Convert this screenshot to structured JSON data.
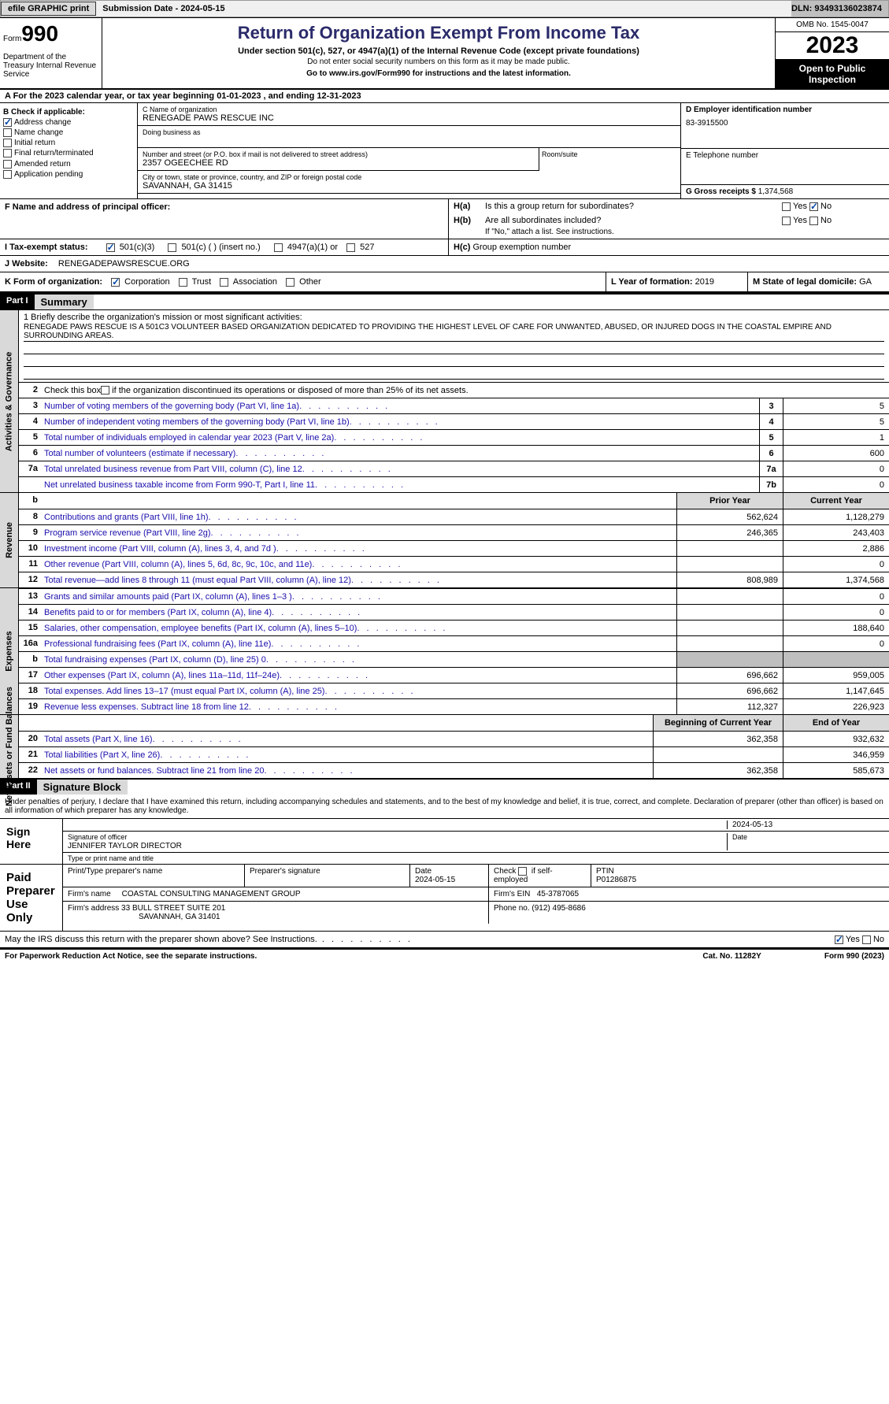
{
  "topbar": {
    "efile": "efile GRAPHIC print",
    "submission": "Submission Date - 2024-05-15",
    "dln": "DLN: 93493136023874"
  },
  "header": {
    "form_label": "Form",
    "form_number": "990",
    "dept": "Department of the Treasury Internal Revenue Service",
    "title": "Return of Organization Exempt From Income Tax",
    "subtitle": "Under section 501(c), 527, or 4947(a)(1) of the Internal Revenue Code (except private foundations)",
    "note": "Do not enter social security numbers on this form as it may be made public.",
    "goto": "Go to www.irs.gov/Form990 for instructions and the latest information.",
    "omb": "OMB No. 1545-0047",
    "year": "2023",
    "open": "Open to Public Inspection"
  },
  "lineA": "A For the 2023 calendar year, or tax year beginning 01-01-2023   , and ending 12-31-2023",
  "colB": {
    "label": "B Check if applicable:",
    "items": [
      "Address change",
      "Name change",
      "Initial return",
      "Final return/terminated",
      "Amended return",
      "Application pending"
    ],
    "checked": [
      true,
      false,
      false,
      false,
      false,
      false
    ]
  },
  "colC": {
    "name_label": "C Name of organization",
    "name": "RENEGADE PAWS RESCUE INC",
    "dba_label": "Doing business as",
    "dba": "",
    "addr_label": "Number and street (or P.O. box if mail is not delivered to street address)",
    "addr": "2357 OGEECHEE RD",
    "room_label": "Room/suite",
    "city_label": "City or town, state or province, country, and ZIP or foreign postal code",
    "city": "SAVANNAH, GA  31415"
  },
  "colD": {
    "ein_label": "D Employer identification number",
    "ein": "83-3915500",
    "tel_label": "E Telephone number",
    "tel": "",
    "gross_label": "G Gross receipts $",
    "gross": "1,374,568"
  },
  "rowF": {
    "label": "F  Name and address of principal officer:",
    "val": ""
  },
  "rowH": {
    "a": "H(a)  Is this a group return for subordinates?",
    "b": "H(b)  Are all subordinates included?",
    "b_note": "If \"No,\" attach a list. See instructions.",
    "c": "H(c)  Group exemption number",
    "yes": "Yes",
    "no": "No"
  },
  "rowI": {
    "label": "I  Tax-exempt status:",
    "opts": [
      "501(c)(3)",
      "501(c) (  ) (insert no.)",
      "4947(a)(1) or",
      "527"
    ]
  },
  "rowJ": {
    "label": "J  Website:",
    "val": "RENEGADEPAWSRESCUE.ORG"
  },
  "rowK": {
    "label": "K Form of organization:",
    "opts": [
      "Corporation",
      "Trust",
      "Association",
      "Other"
    ]
  },
  "rowL": {
    "label": "L Year of formation:",
    "val": "2019"
  },
  "rowM": {
    "label": "M State of legal domicile:",
    "val": "GA"
  },
  "part1": {
    "num": "Part I",
    "title": "Summary"
  },
  "summary": {
    "s1_label": "1  Briefly describe the organization's mission or most significant activities:",
    "s1_text": "RENEGADE PAWS RESCUE IS A 501C3 VOLUNTEER BASED ORGANIZATION DEDICATED TO PROVIDING THE HIGHEST LEVEL OF CARE FOR UNWANTED, ABUSED, OR INJURED DOGS IN THE COASTAL EMPIRE AND SURROUNDING AREAS.",
    "s2": "Check this box      if the organization discontinued its operations or disposed of more than 25% of its net assets.",
    "lines": [
      {
        "n": "3",
        "t": "Number of voting members of the governing body (Part VI, line 1a)",
        "box": "3",
        "v": "5"
      },
      {
        "n": "4",
        "t": "Number of independent voting members of the governing body (Part VI, line 1b)",
        "box": "4",
        "v": "5"
      },
      {
        "n": "5",
        "t": "Total number of individuals employed in calendar year 2023 (Part V, line 2a)",
        "box": "5",
        "v": "1"
      },
      {
        "n": "6",
        "t": "Total number of volunteers (estimate if necessary)",
        "box": "6",
        "v": "600"
      },
      {
        "n": "7a",
        "t": "Total unrelated business revenue from Part VIII, column (C), line 12",
        "box": "7a",
        "v": "0"
      },
      {
        "n": "",
        "t": "Net unrelated business taxable income from Form 990-T, Part I, line 11",
        "box": "7b",
        "v": "0"
      }
    ]
  },
  "revenue": {
    "vlabel": "Revenue",
    "header": {
      "py": "Prior Year",
      "cy": "Current Year"
    },
    "lines": [
      {
        "n": "8",
        "t": "Contributions and grants (Part VIII, line 1h)",
        "py": "562,624",
        "cy": "1,128,279"
      },
      {
        "n": "9",
        "t": "Program service revenue (Part VIII, line 2g)",
        "py": "246,365",
        "cy": "243,403"
      },
      {
        "n": "10",
        "t": "Investment income (Part VIII, column (A), lines 3, 4, and 7d )",
        "py": "",
        "cy": "2,886"
      },
      {
        "n": "11",
        "t": "Other revenue (Part VIII, column (A), lines 5, 6d, 8c, 9c, 10c, and 11e)",
        "py": "",
        "cy": "0"
      },
      {
        "n": "12",
        "t": "Total revenue—add lines 8 through 11 (must equal Part VIII, column (A), line 12)",
        "py": "808,989",
        "cy": "1,374,568"
      }
    ]
  },
  "expenses": {
    "vlabel": "Expenses",
    "lines": [
      {
        "n": "13",
        "t": "Grants and similar amounts paid (Part IX, column (A), lines 1–3 )",
        "py": "",
        "cy": "0"
      },
      {
        "n": "14",
        "t": "Benefits paid to or for members (Part IX, column (A), line 4)",
        "py": "",
        "cy": "0"
      },
      {
        "n": "15",
        "t": "Salaries, other compensation, employee benefits (Part IX, column (A), lines 5–10)",
        "py": "",
        "cy": "188,640"
      },
      {
        "n": "16a",
        "t": "Professional fundraising fees (Part IX, column (A), line 11e)",
        "py": "",
        "cy": "0"
      },
      {
        "n": "b",
        "t": "Total fundraising expenses (Part IX, column (D), line 25) 0",
        "py": "grey",
        "cy": "grey"
      },
      {
        "n": "17",
        "t": "Other expenses (Part IX, column (A), lines 11a–11d, 11f–24e)",
        "py": "696,662",
        "cy": "959,005"
      },
      {
        "n": "18",
        "t": "Total expenses. Add lines 13–17 (must equal Part IX, column (A), line 25)",
        "py": "696,662",
        "cy": "1,147,645"
      },
      {
        "n": "19",
        "t": "Revenue less expenses. Subtract line 18 from line 12",
        "py": "112,327",
        "cy": "226,923"
      }
    ]
  },
  "netassets": {
    "vlabel": "Net Assets or Fund Balances",
    "header": {
      "py": "Beginning of Current Year",
      "cy": "End of Year"
    },
    "lines": [
      {
        "n": "20",
        "t": "Total assets (Part X, line 16)",
        "py": "362,358",
        "cy": "932,632"
      },
      {
        "n": "21",
        "t": "Total liabilities (Part X, line 26)",
        "py": "",
        "cy": "346,959"
      },
      {
        "n": "22",
        "t": "Net assets or fund balances. Subtract line 21 from line 20",
        "py": "362,358",
        "cy": "585,673"
      }
    ]
  },
  "part2": {
    "num": "Part II",
    "title": "Signature Block"
  },
  "sig": {
    "decl": "Under penalties of perjury, I declare that I have examined this return, including accompanying schedules and statements, and to the best of my knowledge and belief, it is true, correct, and complete. Declaration of preparer (other than officer) is based on all information of which preparer has any knowledge.",
    "sign_here": "Sign Here",
    "sig_officer": "Signature of officer",
    "officer_name": "JENNIFER TAYLOR DIRECTOR",
    "type_name": "Type or print name and title",
    "date_label": "Date",
    "date": "2024-05-13",
    "paid": "Paid Preparer Use Only",
    "prep_name_lbl": "Print/Type preparer's name",
    "prep_sig_lbl": "Preparer's signature",
    "prep_date_lbl": "Date",
    "prep_date": "2024-05-15",
    "check_lbl": "Check       if self-employed",
    "ptin_lbl": "PTIN",
    "ptin": "P01286875",
    "firm_name_lbl": "Firm's name",
    "firm_name": "COASTAL CONSULTING MANAGEMENT GROUP",
    "firm_ein_lbl": "Firm's EIN",
    "firm_ein": "45-3787065",
    "firm_addr_lbl": "Firm's address",
    "firm_addr": "33 BULL STREET SUITE 201",
    "firm_city": "SAVANNAH, GA  31401",
    "phone_lbl": "Phone no.",
    "phone": "(912) 495-8686",
    "discuss": "May the IRS discuss this return with the preparer shown above? See Instructions."
  },
  "footer": {
    "left": "For Paperwork Reduction Act Notice, see the separate instructions.",
    "mid": "Cat. No. 11282Y",
    "right": "Form 990 (2023)"
  },
  "gov_vlabel": "Activities & Governance"
}
